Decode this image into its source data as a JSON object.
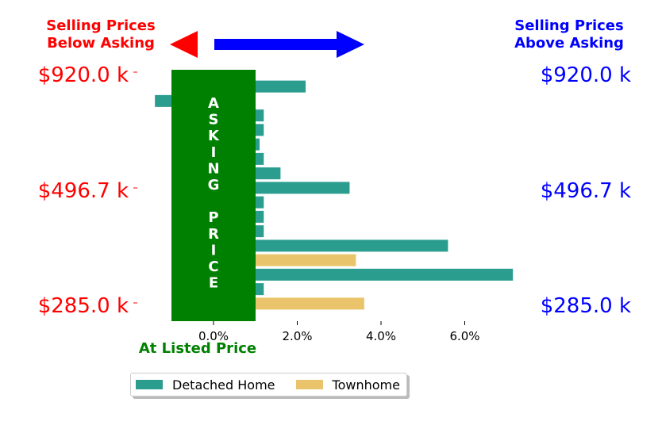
{
  "chart_data": {
    "type": "bar",
    "orientation": "horizontal",
    "header_left": [
      "Selling Prices",
      "Below Asking"
    ],
    "header_right": [
      "Selling Prices",
      "Above Asking"
    ],
    "left_axis_ticks": [
      "$920.0 k",
      "$496.7 k",
      "$285.0 k"
    ],
    "right_axis_ticks": [
      "$920.0 k",
      "$496.7 k",
      "$285.0 k"
    ],
    "xlabel": "At Listed Price",
    "x_ticks": [
      "0.0%",
      "2.0%",
      "4.0%",
      "6.0%"
    ],
    "xlim": [
      -1.4,
      7.2
    ],
    "band_text": [
      "A",
      "S",
      "K",
      "I",
      "N",
      "G",
      "",
      "P",
      "R",
      "I",
      "C",
      "E"
    ],
    "legend": [
      "Detached Home",
      "Townhome"
    ],
    "bars": [
      {
        "series": "Detached Home",
        "value": 2.2
      },
      {
        "series": "Detached Home",
        "value": -1.4
      },
      {
        "series": "Detached Home",
        "value": 1.2
      },
      {
        "series": "Detached Home",
        "value": 1.2
      },
      {
        "series": "Detached Home",
        "value": 1.1
      },
      {
        "series": "Detached Home",
        "value": 1.2
      },
      {
        "series": "Detached Home",
        "value": 1.6
      },
      {
        "series": "Detached Home",
        "value": 3.25
      },
      {
        "series": "Detached Home",
        "value": 1.2
      },
      {
        "series": "Detached Home",
        "value": 1.2
      },
      {
        "series": "Detached Home",
        "value": 1.2
      },
      {
        "series": "Detached Home",
        "value": 5.6
      },
      {
        "series": "Townhome",
        "value": 3.4
      },
      {
        "series": "Detached Home",
        "value": 7.15
      },
      {
        "series": "Detached Home",
        "value": 1.2
      },
      {
        "series": "Townhome",
        "value": 3.6
      }
    ],
    "colors": {
      "Detached Home": "#2a9d8f",
      "Townhome": "#e9c46a",
      "band": "#008000",
      "left": "#ff0000",
      "right": "#0000ff",
      "xlabel": "#008000"
    }
  }
}
